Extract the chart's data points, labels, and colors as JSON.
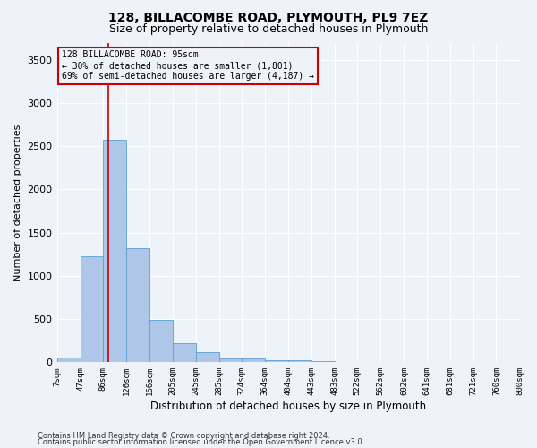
{
  "title": "128, BILLACOMBE ROAD, PLYMOUTH, PL9 7EZ",
  "subtitle": "Size of property relative to detached houses in Plymouth",
  "xlabel": "Distribution of detached houses by size in Plymouth",
  "ylabel": "Number of detached properties",
  "bar_color": "#aec6e8",
  "bar_edge_color": "#5a9fd4",
  "red_line_x": 95,
  "annotation_title": "128 BILLACOMBE ROAD: 95sqm",
  "annotation_line2": "← 30% of detached houses are smaller (1,801)",
  "annotation_line3": "69% of semi-detached houses are larger (4,187) →",
  "footer_line1": "Contains HM Land Registry data © Crown copyright and database right 2024.",
  "footer_line2": "Contains public sector information licensed under the Open Government Licence v3.0.",
  "bin_edges": [
    7,
    47,
    86,
    126,
    166,
    205,
    245,
    285,
    324,
    364,
    404,
    443,
    483,
    522,
    562,
    602,
    641,
    681,
    721,
    760,
    800
  ],
  "bar_heights": [
    55,
    1230,
    2580,
    1320,
    490,
    220,
    115,
    50,
    40,
    25,
    20,
    10,
    5,
    3,
    2,
    2,
    1,
    1,
    1,
    1
  ],
  "ylim": [
    0,
    3700
  ],
  "yticks": [
    0,
    500,
    1000,
    1500,
    2000,
    2500,
    3000,
    3500
  ],
  "bg_color": "#eef2f9",
  "grid_color": "#ffffff",
  "box_color": "#cc0000",
  "title_fontsize": 10,
  "subtitle_fontsize": 9
}
